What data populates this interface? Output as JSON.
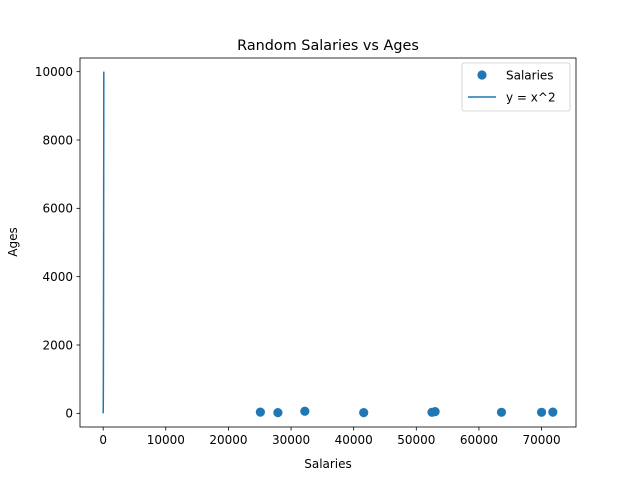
{
  "chart_data": {
    "type": "scatter",
    "title": "Random Salaries vs Ages",
    "xlabel": "Salaries",
    "ylabel": "Ages",
    "xlim": [
      -3700,
      75500
    ],
    "ylim": [
      -400,
      10400
    ],
    "xticks": [
      0,
      10000,
      20000,
      30000,
      40000,
      50000,
      60000,
      70000
    ],
    "xtick_labels": [
      "0",
      "10000",
      "20000",
      "30000",
      "40000",
      "50000",
      "60000",
      "70000"
    ],
    "yticks": [
      0,
      2000,
      4000,
      6000,
      8000,
      10000
    ],
    "ytick_labels": [
      "0",
      "2000",
      "4000",
      "6000",
      "8000",
      "10000"
    ],
    "grid": false,
    "legend_position": "top-right",
    "series": [
      {
        "name": "Salaries",
        "kind": "scatter",
        "color": "#1f77b4",
        "points": [
          {
            "x": 25100,
            "y": 35
          },
          {
            "x": 27900,
            "y": 20
          },
          {
            "x": 32200,
            "y": 60
          },
          {
            "x": 41600,
            "y": 20
          },
          {
            "x": 52500,
            "y": 30
          },
          {
            "x": 53000,
            "y": 50
          },
          {
            "x": 63600,
            "y": 30
          },
          {
            "x": 70000,
            "y": 30
          },
          {
            "x": 71800,
            "y": 35
          }
        ]
      },
      {
        "name": "y = x^2",
        "kind": "line",
        "color": "#1f77b4",
        "points": [
          {
            "x": 0,
            "y": 0
          },
          {
            "x": 10,
            "y": 100
          },
          {
            "x": 20,
            "y": 400
          },
          {
            "x": 30,
            "y": 900
          },
          {
            "x": 40,
            "y": 1600
          },
          {
            "x": 50,
            "y": 2500
          },
          {
            "x": 60,
            "y": 3600
          },
          {
            "x": 70,
            "y": 4900
          },
          {
            "x": 80,
            "y": 6400
          },
          {
            "x": 90,
            "y": 8100
          },
          {
            "x": 100,
            "y": 10000
          }
        ]
      }
    ]
  }
}
